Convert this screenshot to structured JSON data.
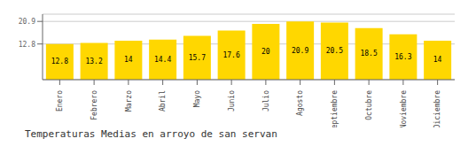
{
  "chart_data": {
    "type": "bar",
    "title": "Temperaturas Medias en arroyo de san servan",
    "categories": [
      "Enero",
      "Febrero",
      "Marzo",
      "Abril",
      "Mayo",
      "Junio",
      "Julio",
      "Agosto",
      "Septiembre",
      "Octubre",
      "Noviembre",
      "Diciembre"
    ],
    "values": [
      12.8,
      13.2,
      14.0,
      14.4,
      15.7,
      17.6,
      20.0,
      20.9,
      20.5,
      18.5,
      16.3,
      14.0
    ],
    "color": "#FFD700",
    "ylim": [
      0.0,
      23.5
    ],
    "yticks": [
      12.8,
      20.9
    ],
    "grid": true,
    "data_labels": true
  }
}
